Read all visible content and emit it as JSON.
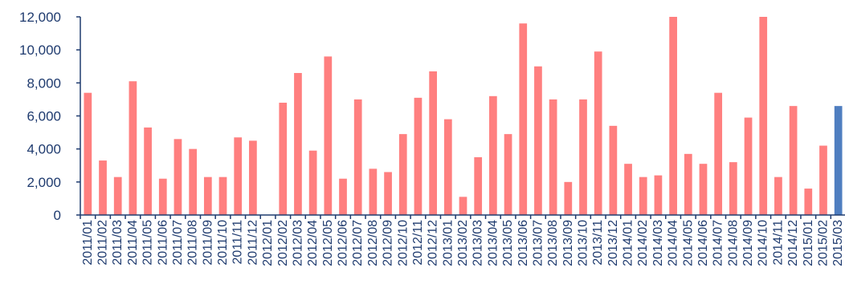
{
  "chart_data": {
    "type": "bar",
    "title": "",
    "xlabel": "",
    "ylabel": "",
    "ylim": [
      0,
      12000
    ],
    "yticks": [
      0,
      2000,
      4000,
      6000,
      8000,
      10000,
      12000
    ],
    "ytick_labels": [
      "0",
      "2,000",
      "4,000",
      "6,000",
      "8,000",
      "10,000",
      "12,000"
    ],
    "grid": false,
    "legend": "none",
    "colors": {
      "default_bar": "#ff7f7f",
      "highlight_bar": "#4f7ec0",
      "axis": "#1f3b6f"
    },
    "categories": [
      "2011/01",
      "2011/02",
      "2011/03",
      "2011/04",
      "2011/05",
      "2011/06",
      "2011/07",
      "2011/08",
      "2011/09",
      "2011/10",
      "2011/11",
      "2011/12",
      "2012/01",
      "2012/02",
      "2012/03",
      "2012/04",
      "2012/05",
      "2012/06",
      "2012/07",
      "2012/08",
      "2012/09",
      "2012/10",
      "2012/11",
      "2012/12",
      "2013/01",
      "2013/02",
      "2013/03",
      "2013/04",
      "2013/05",
      "2013/06",
      "2013/07",
      "2013/08",
      "2013/09",
      "2013/10",
      "2013/11",
      "2013/12",
      "2014/01",
      "2014/02",
      "2014/03",
      "2014/04",
      "2014/05",
      "2014/06",
      "2014/07",
      "2014/08",
      "2014/09",
      "2014/10",
      "2014/11",
      "2014/12",
      "2015/01",
      "2015/02",
      "2015/03"
    ],
    "values": [
      7400,
      3300,
      2300,
      8100,
      5300,
      2200,
      4600,
      4000,
      2300,
      2300,
      4700,
      4500,
      0,
      6800,
      8600,
      3900,
      9600,
      2200,
      7000,
      2800,
      2600,
      4900,
      7100,
      8700,
      5800,
      1100,
      3500,
      7200,
      4900,
      11600,
      9000,
      7000,
      2000,
      7000,
      9900,
      5400,
      3100,
      2300,
      2400,
      12000,
      3700,
      3100,
      7400,
      3200,
      5900,
      12000,
      2300,
      6600,
      1600,
      4200,
      6600
    ],
    "highlight_index": 50
  }
}
